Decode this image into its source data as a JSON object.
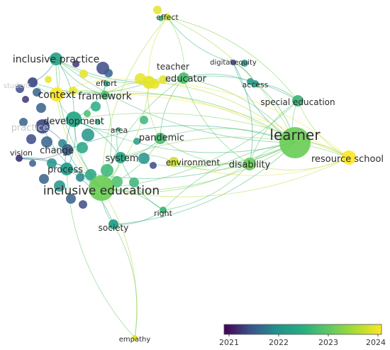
{
  "legend": {
    "stops": [
      "#440154",
      "#3b528b",
      "#21918c",
      "#27ad81",
      "#5ec962",
      "#aadc32",
      "#fde725"
    ],
    "ticks": [
      "2021",
      "2022",
      "2023",
      "2024"
    ]
  },
  "network": {
    "nodes": [
      {
        "id": "learner",
        "label": "learner",
        "score": 0.7,
        "weight": 5
      },
      {
        "id": "resource_school",
        "label": "resource school",
        "score": 1.0,
        "weight": 3
      },
      {
        "id": "inclusive_education",
        "label": "inclusive education",
        "score": 0.7,
        "weight": 5
      },
      {
        "id": "inclusive_practice",
        "label": "inclusive practice",
        "score": 0.45,
        "weight": 3
      },
      {
        "id": "context",
        "label": "context",
        "score": 1.0,
        "weight": 3
      },
      {
        "id": "framework",
        "label": "framework",
        "score": 0.6,
        "weight": 2
      },
      {
        "id": "development",
        "label": "development",
        "score": 0.45,
        "weight": 4
      },
      {
        "id": "change",
        "label": "change",
        "score": 0.2,
        "weight": 2
      },
      {
        "id": "process",
        "label": "process",
        "score": 0.4,
        "weight": 3
      },
      {
        "id": "vision",
        "label": "vision",
        "score": 0.1,
        "weight": 1
      },
      {
        "id": "system",
        "label": "system",
        "score": 0.45,
        "weight": 2
      },
      {
        "id": "pandemic",
        "label": "pandemic",
        "score": 0.6,
        "weight": 2
      },
      {
        "id": "area",
        "label": "area",
        "score": 0.55,
        "weight": 1
      },
      {
        "id": "effort",
        "label": "effort",
        "score": 0.5,
        "weight": 1
      },
      {
        "id": "educator",
        "label": "educator",
        "score": 0.6,
        "weight": 3
      },
      {
        "id": "teacher",
        "label": "teacher",
        "score": 0.95,
        "weight": 3
      },
      {
        "id": "effect",
        "label": "effect",
        "score": 0.9,
        "weight": 1
      },
      {
        "id": "digital_equity",
        "label": "digital equity",
        "score": 0.15,
        "weight": 1
      },
      {
        "id": "access",
        "label": "access",
        "score": 0.4,
        "weight": 1
      },
      {
        "id": "special_education",
        "label": "special education",
        "score": 0.55,
        "weight": 2
      },
      {
        "id": "disability",
        "label": "disability",
        "score": 0.7,
        "weight": 3
      },
      {
        "id": "environment",
        "label": "environment",
        "score": 0.9,
        "weight": 2
      },
      {
        "id": "right",
        "label": "right",
        "score": 0.55,
        "weight": 1
      },
      {
        "id": "society",
        "label": "society",
        "score": 0.4,
        "weight": 2
      },
      {
        "id": "empathy",
        "label": "empathy",
        "score": 0.95,
        "weight": 1
      },
      {
        "id": "student",
        "label": "student",
        "score": 0.15,
        "weight": 2
      },
      {
        "id": "practice",
        "label": "practice",
        "score": 0.15,
        "weight": 3
      }
    ],
    "links": [
      [
        "learner",
        "resource_school"
      ],
      [
        "learner",
        "disability"
      ],
      [
        "learner",
        "special_education"
      ],
      [
        "learner",
        "educator"
      ],
      [
        "learner",
        "inclusive_education"
      ],
      [
        "learner",
        "access"
      ],
      [
        "learner",
        "digital_equity"
      ],
      [
        "learner",
        "pandemic"
      ],
      [
        "learner",
        "system"
      ],
      [
        "learner",
        "context"
      ],
      [
        "learner",
        "environment"
      ],
      [
        "learner",
        "framework"
      ],
      [
        "learner",
        "development"
      ],
      [
        "learner",
        "right"
      ],
      [
        "learner",
        "society"
      ],
      [
        "learner",
        "teacher"
      ],
      [
        "learner",
        "inclusive_practice"
      ],
      [
        "learner",
        "effect"
      ],
      [
        "learner",
        "process"
      ],
      [
        "learner",
        "change"
      ],
      [
        "resource_school",
        "inclusive_education"
      ],
      [
        "resource_school",
        "context"
      ],
      [
        "resource_school",
        "disability"
      ],
      [
        "resource_school",
        "teacher"
      ],
      [
        "resource_school",
        "special_education"
      ],
      [
        "resource_school",
        "development"
      ],
      [
        "resource_school",
        "environment"
      ],
      [
        "resource_school",
        "system"
      ],
      [
        "inclusive_education",
        "development"
      ],
      [
        "inclusive_education",
        "process"
      ],
      [
        "inclusive_education",
        "change"
      ],
      [
        "inclusive_education",
        "society"
      ],
      [
        "inclusive_education",
        "right"
      ],
      [
        "inclusive_education",
        "system"
      ],
      [
        "inclusive_education",
        "empathy"
      ],
      [
        "inclusive_education",
        "disability"
      ],
      [
        "inclusive_education",
        "educator"
      ],
      [
        "inclusive_education",
        "teacher"
      ],
      [
        "inclusive_education",
        "inclusive_practice"
      ],
      [
        "inclusive_education",
        "framework"
      ],
      [
        "inclusive_education",
        "context"
      ],
      [
        "inclusive_education",
        "vision"
      ],
      [
        "inclusive_education",
        "practice"
      ],
      [
        "inclusive_education",
        "pandemic"
      ],
      [
        "inclusive_education",
        "effect"
      ],
      [
        "inclusive_education",
        "special_education"
      ],
      [
        "inclusive_practice",
        "context"
      ],
      [
        "inclusive_practice",
        "framework"
      ],
      [
        "inclusive_practice",
        "development"
      ],
      [
        "inclusive_practice",
        "teacher"
      ],
      [
        "inclusive_practice",
        "student"
      ],
      [
        "inclusive_practice",
        "educator"
      ],
      [
        "context",
        "framework"
      ],
      [
        "context",
        "development"
      ],
      [
        "context",
        "teacher"
      ],
      [
        "development",
        "change"
      ],
      [
        "development",
        "process"
      ],
      [
        "development",
        "practice"
      ],
      [
        "development",
        "system"
      ],
      [
        "development",
        "area"
      ],
      [
        "process",
        "change"
      ],
      [
        "process",
        "vision"
      ],
      [
        "process",
        "society"
      ],
      [
        "system",
        "pandemic"
      ],
      [
        "system",
        "environment"
      ],
      [
        "system",
        "right"
      ],
      [
        "pandemic",
        "educator"
      ],
      [
        "pandemic",
        "disability"
      ],
      [
        "pandemic",
        "teacher"
      ],
      [
        "educator",
        "teacher"
      ],
      [
        "educator",
        "access"
      ],
      [
        "educator",
        "effect"
      ],
      [
        "educator",
        "special_education"
      ],
      [
        "educator",
        "disability"
      ],
      [
        "teacher",
        "effect"
      ],
      [
        "teacher",
        "framework"
      ],
      [
        "teacher",
        "student"
      ],
      [
        "access",
        "digital_equity"
      ],
      [
        "access",
        "special_education"
      ],
      [
        "special_education",
        "disability"
      ],
      [
        "disability",
        "environment"
      ],
      [
        "society",
        "right"
      ],
      [
        "society",
        "empathy"
      ],
      [
        "process",
        "empathy"
      ],
      [
        "change",
        "vision"
      ],
      [
        "effort",
        "framework"
      ],
      [
        "effort",
        "development"
      ],
      [
        "student",
        "context"
      ],
      [
        "practice",
        "change"
      ],
      [
        "area",
        "system"
      ],
      [
        "effect",
        "special_education"
      ],
      [
        "effect",
        "digital_equity"
      ],
      [
        "digital_equity",
        "disability"
      ],
      [
        "right",
        "disability"
      ]
    ]
  }
}
